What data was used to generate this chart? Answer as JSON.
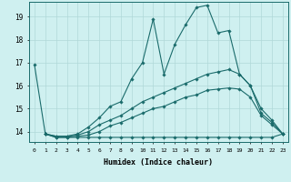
{
  "xlabel": "Humidex (Indice chaleur)",
  "bg_color": "#cff0f0",
  "line_color": "#1a6b6b",
  "grid_color": "#b0d8d8",
  "xlim": [
    -0.5,
    23.5
  ],
  "ylim": [
    13.55,
    19.65
  ],
  "yticks": [
    14,
    15,
    16,
    17,
    18,
    19
  ],
  "xticks": [
    0,
    1,
    2,
    3,
    4,
    5,
    6,
    7,
    8,
    9,
    10,
    11,
    12,
    13,
    14,
    15,
    16,
    17,
    18,
    19,
    20,
    21,
    22,
    23
  ],
  "line1_x": [
    0,
    1,
    2,
    3,
    4,
    5,
    6,
    7,
    8,
    9,
    10,
    11,
    12,
    13,
    14,
    15,
    16,
    17,
    18,
    19,
    20,
    21,
    22,
    23
  ],
  "line1_y": [
    16.9,
    13.9,
    13.8,
    13.8,
    13.9,
    14.2,
    14.6,
    15.1,
    15.3,
    16.3,
    17.0,
    18.9,
    16.5,
    17.8,
    18.65,
    19.4,
    19.5,
    18.3,
    18.4,
    16.5,
    16.0,
    14.8,
    14.4,
    13.9
  ],
  "line2_x": [
    1,
    2,
    3,
    4,
    5,
    6,
    7,
    8,
    9,
    10,
    11,
    12,
    13,
    14,
    15,
    16,
    17,
    18,
    19,
    20,
    21,
    22,
    23
  ],
  "line2_y": [
    13.9,
    13.8,
    13.8,
    13.85,
    14.0,
    14.3,
    14.5,
    14.7,
    15.0,
    15.3,
    15.5,
    15.7,
    15.9,
    16.1,
    16.3,
    16.5,
    16.6,
    16.7,
    16.5,
    16.0,
    15.0,
    14.5,
    13.9
  ],
  "line3_x": [
    1,
    2,
    3,
    4,
    5,
    6,
    7,
    8,
    9,
    10,
    11,
    12,
    13,
    14,
    15,
    16,
    17,
    18,
    19,
    20,
    21,
    22,
    23
  ],
  "line3_y": [
    13.9,
    13.75,
    13.75,
    13.8,
    13.85,
    14.0,
    14.25,
    14.4,
    14.6,
    14.8,
    15.0,
    15.1,
    15.3,
    15.5,
    15.6,
    15.8,
    15.85,
    15.9,
    15.85,
    15.5,
    14.7,
    14.3,
    13.9
  ],
  "line4_x": [
    1,
    2,
    3,
    4,
    5,
    6,
    7,
    8,
    9,
    10,
    11,
    12,
    13,
    14,
    15,
    16,
    17,
    18,
    19,
    20,
    21,
    22,
    23
  ],
  "line4_y": [
    13.9,
    13.75,
    13.75,
    13.75,
    13.75,
    13.75,
    13.75,
    13.75,
    13.75,
    13.75,
    13.75,
    13.75,
    13.75,
    13.75,
    13.75,
    13.75,
    13.75,
    13.75,
    13.75,
    13.75,
    13.75,
    13.75,
    13.9
  ]
}
